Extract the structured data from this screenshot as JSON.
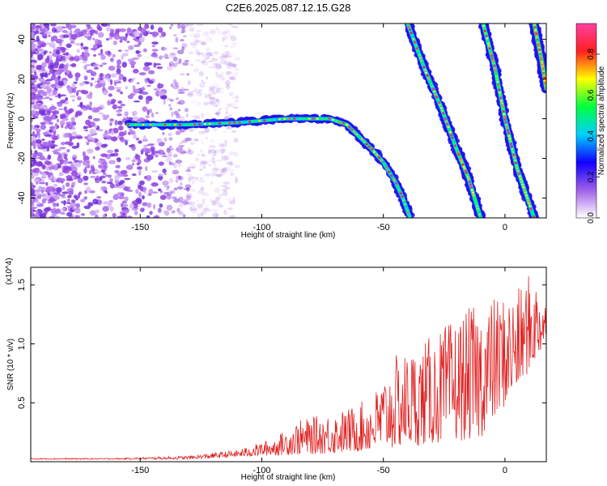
{
  "title": "C2E6.2025.087.12.15.G28",
  "chart_data": [
    {
      "type": "heatmap",
      "xlabel": "Height of straight line (km)",
      "ylabel": "Frequency (Hz)",
      "xlim": [
        -195,
        17
      ],
      "ylim": [
        -50,
        48
      ],
      "x_ticks": [
        -150,
        -100,
        -50,
        0
      ],
      "y_ticks": [
        -40,
        -20,
        0,
        20,
        40
      ],
      "tracks": [
        {
          "points": [
            [
              -155,
              -3
            ],
            [
              -140,
              -3
            ],
            [
              -130,
              -3
            ],
            [
              -120,
              -2.5
            ],
            [
              -110,
              -2
            ],
            [
              -100,
              -1
            ],
            [
              -90,
              0
            ],
            [
              -80,
              0
            ],
            [
              -72,
              0
            ],
            [
              -65,
              -3
            ],
            [
              -60,
              -9
            ],
            [
              -55,
              -15
            ],
            [
              -50,
              -22
            ],
            [
              -45,
              -32
            ],
            [
              -42,
              -40
            ],
            [
              -39,
              -50
            ]
          ]
        },
        {
          "points": [
            [
              -40,
              48
            ],
            [
              -33,
              25
            ],
            [
              -26,
              5
            ],
            [
              -20,
              -15
            ],
            [
              -15,
              -30
            ],
            [
              -10,
              -50
            ]
          ]
        },
        {
          "points": [
            [
              -9,
              48
            ],
            [
              -4,
              25
            ],
            [
              0,
              0
            ],
            [
              5,
              -25
            ],
            [
              12,
              -50
            ]
          ]
        },
        {
          "points": [
            [
              12,
              48
            ],
            [
              15,
              30
            ],
            [
              17,
              15
            ]
          ]
        }
      ],
      "colorbar": {
        "label": "Normalized spectral amplitude",
        "range": [
          0,
          0.95
        ],
        "ticks": [
          "0.0",
          "0.2",
          "0.4",
          "0.6",
          "0.8"
        ],
        "colormap": [
          "#ffffff",
          "#a060e8",
          "#1000ff",
          "#00d0ff",
          "#00ff40",
          "#ffff00",
          "#ff2020",
          "#ff40a0"
        ]
      },
      "grid": false
    },
    {
      "type": "line",
      "xlabel": "Height of straight line (km)",
      "ylabel": "SNR (10 * v/v)",
      "y_multiplier": "(x10^4)",
      "xlim": [
        -195,
        17
      ],
      "ylim": [
        0,
        1.65
      ],
      "x_ticks": [
        -150,
        -100,
        -50,
        0
      ],
      "y_ticks": [
        "0.5",
        "1.0",
        "1.5"
      ],
      "series": [
        {
          "color": "#e02020",
          "envelope": [
            [
              -195,
              0.03
            ],
            [
              -160,
              0.03
            ],
            [
              -130,
              0.05
            ],
            [
              -110,
              0.1
            ],
            [
              -95,
              0.2
            ],
            [
              -85,
              0.35
            ],
            [
              -75,
              0.4
            ],
            [
              -65,
              0.45
            ],
            [
              -55,
              0.55
            ],
            [
              -45,
              0.9
            ],
            [
              -35,
              1.0
            ],
            [
              -25,
              1.15
            ],
            [
              -15,
              1.3
            ],
            [
              -5,
              1.4
            ],
            [
              5,
              1.45
            ],
            [
              10,
              1.6
            ],
            [
              17,
              1.45
            ]
          ],
          "floor": [
            [
              -195,
              0.02
            ],
            [
              -130,
              0.02
            ],
            [
              -100,
              0.05
            ],
            [
              -70,
              0.07
            ],
            [
              -50,
              0.1
            ],
            [
              -30,
              0.15
            ],
            [
              -10,
              0.2
            ],
            [
              5,
              0.6
            ],
            [
              17,
              1.0
            ]
          ]
        }
      ],
      "grid": false
    }
  ]
}
